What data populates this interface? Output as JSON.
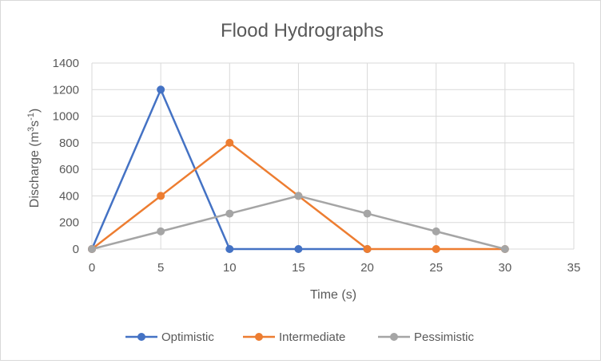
{
  "chart_data": {
    "type": "scatter",
    "title": "Flood Hydrographs",
    "xlabel": "Time (s)",
    "ylabel_parts": {
      "prefix": "Discharge (m",
      "sup1": "3",
      "mid": "s",
      "sup2": "-1",
      "suffix": ")"
    },
    "xlim": [
      0,
      35
    ],
    "ylim": [
      0,
      1400
    ],
    "xticks": [
      0,
      5,
      10,
      15,
      20,
      25,
      30,
      35
    ],
    "yticks": [
      0,
      200,
      400,
      600,
      800,
      1000,
      1200,
      1400
    ],
    "grid": true,
    "legend_position": "bottom",
    "series": [
      {
        "name": "Optimistic",
        "color": "#4472c4",
        "x": [
          0,
          5,
          10,
          15,
          20
        ],
        "y": [
          0,
          1200,
          0,
          0,
          0
        ]
      },
      {
        "name": "Intermediate",
        "color": "#ed7d31",
        "x": [
          0,
          5,
          10,
          15,
          20,
          25,
          30
        ],
        "y": [
          0,
          400,
          800,
          400,
          0,
          0,
          0
        ]
      },
      {
        "name": "Pessimistic",
        "color": "#a5a5a5",
        "x": [
          0,
          5,
          10,
          15,
          20,
          25,
          30
        ],
        "y": [
          0,
          133,
          267,
          400,
          267,
          133,
          0
        ]
      }
    ]
  }
}
